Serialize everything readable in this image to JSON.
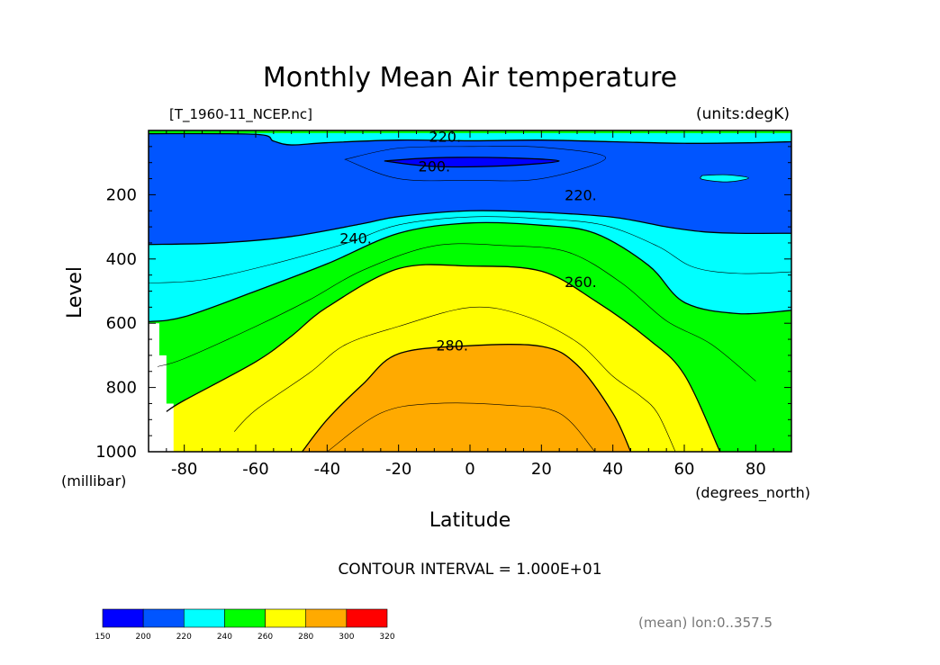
{
  "chart_data": {
    "type": "contour",
    "title": "Monthly Mean Air temperature",
    "subtitle_left": "[T_1960-11_NCEP.nc]",
    "subtitle_right": "(units:degK)",
    "xlabel": "Latitude",
    "xunits": "(degrees_north)",
    "ylabel": "Level",
    "yunits": "(millibar)",
    "xlim": [
      -90,
      90
    ],
    "ylim": [
      1000,
      0
    ],
    "x_ticks": [
      -80,
      -60,
      -40,
      -20,
      0,
      20,
      40,
      60,
      80
    ],
    "x_tick_labels": [
      "-80",
      "-60",
      "-40",
      "-20",
      "0",
      "20",
      "40",
      "60",
      "80"
    ],
    "y_ticks": [
      200,
      400,
      600,
      800,
      1000
    ],
    "y_tick_labels": [
      "200",
      "400",
      "600",
      "800",
      "1000"
    ],
    "contour_interval_text": "CONTOUR INTERVAL = 1.000E+01",
    "footnote": "(mean) lon:0..357.5",
    "contour_labels": [
      {
        "text": "220.",
        "lat": -7,
        "level": 18
      },
      {
        "text": "200.",
        "lat": -10,
        "level": 110
      },
      {
        "text": "220.",
        "lat": 31,
        "level": 200
      },
      {
        "text": "240.",
        "lat": -32,
        "level": 335
      },
      {
        "text": "260.",
        "lat": 31,
        "level": 470
      },
      {
        "text": "280.",
        "lat": -5,
        "level": 668
      }
    ],
    "colorbar": {
      "levels": [
        "150",
        "200",
        "220",
        "240",
        "260",
        "280",
        "300",
        "320"
      ],
      "colors": [
        "#0000FF",
        "#0055FF",
        "#00FFFF",
        "#00FF00",
        "#FFFF00",
        "#FFAA00",
        "#FF0000"
      ]
    },
    "fill_colors": {
      "below_200": "#0000FF",
      "200_220": "#0055FF",
      "220_240": "#00FFFF",
      "240_260": "#00FF00",
      "260_280": "#FFFF00",
      "280_300": "#FFAA00",
      "missing": "#FFFFFF"
    },
    "isotherm_220": [
      [
        -90,
        10
      ],
      [
        -60,
        12
      ],
      [
        -55,
        33
      ],
      [
        -50,
        45
      ],
      [
        -40,
        38
      ],
      [
        -20,
        30
      ],
      [
        0,
        32
      ],
      [
        20,
        30
      ],
      [
        40,
        35
      ],
      [
        60,
        40
      ],
      [
        80,
        38
      ],
      [
        90,
        35
      ]
    ],
    "isotherm_220_south": [
      [
        -90,
        355
      ],
      [
        -70,
        350
      ],
      [
        -50,
        330
      ],
      [
        -30,
        290
      ],
      [
        -20,
        268
      ],
      [
        0,
        250
      ],
      [
        20,
        255
      ],
      [
        40,
        270
      ],
      [
        55,
        300
      ],
      [
        65,
        315
      ],
      [
        75,
        320
      ],
      [
        90,
        320
      ]
    ],
    "isotherm_240": [
      [
        -90,
        595
      ],
      [
        -80,
        580
      ],
      [
        -60,
        500
      ],
      [
        -40,
        415
      ],
      [
        -20,
        320
      ],
      [
        0,
        288
      ],
      [
        20,
        295
      ],
      [
        35,
        320
      ],
      [
        50,
        420
      ],
      [
        60,
        535
      ],
      [
        75,
        570
      ],
      [
        90,
        560
      ]
    ],
    "isotherm_260": [
      [
        -85,
        875
      ],
      [
        -80,
        840
      ],
      [
        -60,
        720
      ],
      [
        -50,
        640
      ],
      [
        -40,
        550
      ],
      [
        -20,
        430
      ],
      [
        0,
        422
      ],
      [
        20,
        438
      ],
      [
        35,
        530
      ],
      [
        50,
        650
      ],
      [
        60,
        760
      ],
      [
        70,
        1000
      ]
    ],
    "isotherm_280": [
      [
        -47,
        1000
      ],
      [
        -40,
        900
      ],
      [
        -30,
        790
      ],
      [
        -20,
        695
      ],
      [
        0,
        670
      ],
      [
        20,
        672
      ],
      [
        30,
        730
      ],
      [
        40,
        880
      ],
      [
        45,
        1000
      ]
    ],
    "isotherm_200_core": [
      [
        -24,
        95
      ],
      [
        -10,
        85
      ],
      [
        10,
        85
      ],
      [
        25,
        95
      ],
      [
        10,
        110
      ],
      [
        -10,
        112
      ]
    ],
    "cyan_patch_east": [
      [
        65,
        140
      ],
      [
        72,
        138
      ],
      [
        78,
        148
      ],
      [
        72,
        160
      ],
      [
        65,
        152
      ]
    ],
    "missing_corner": [
      [
        -90,
        600
      ],
      [
        -87,
        600
      ],
      [
        -87,
        700
      ],
      [
        -85,
        700
      ],
      [
        -85,
        850
      ],
      [
        -83,
        850
      ],
      [
        -83,
        1000
      ],
      [
        -90,
        1000
      ]
    ]
  }
}
